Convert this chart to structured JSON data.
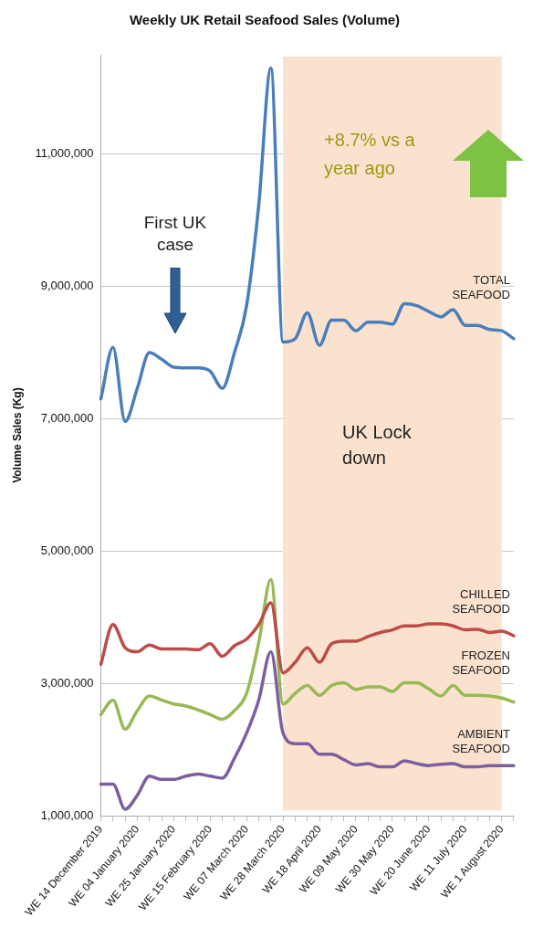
{
  "chart_data": {
    "type": "line",
    "title": "Weekly UK Retail Seafood Sales (Volume)",
    "ylabel": "Volume Sales (Kg)",
    "categories": [
      "WE 14 December 2019",
      null,
      null,
      "WE 04 January 2020",
      null,
      null,
      "WE 25 January 2020",
      null,
      null,
      "WE 15 February 2020",
      null,
      null,
      "WE 07 March 2020",
      null,
      null,
      "WE 28 March 2020",
      null,
      null,
      "WE 18 April 2020",
      null,
      null,
      "WE 09 May 2020",
      null,
      null,
      "WE 30 May 2020",
      null,
      null,
      "WE 20 June 2020",
      null,
      null,
      "WE 11 July 2020",
      null,
      null,
      "WE 1 August 2020",
      null
    ],
    "series": [
      {
        "name": "TOTAL SEAFOOD",
        "color": "#4a7ebb",
        "values": [
          7300000,
          8080000,
          6960000,
          7460000,
          8000000,
          7900000,
          7780000,
          7770000,
          7770000,
          7720000,
          7460000,
          8000000,
          8710000,
          10230000,
          12300000,
          8160000,
          8210000,
          8600000,
          8110000,
          8490000,
          8490000,
          8330000,
          8460000,
          8460000,
          8430000,
          8740000,
          8710000,
          8620000,
          8540000,
          8650000,
          8410000,
          8410000,
          8350000,
          8330000,
          8210000
        ]
      },
      {
        "name": "CHILLED SEAFOOD",
        "color": "#be4b48",
        "values": [
          3290000,
          3890000,
          3540000,
          3480000,
          3580000,
          3520000,
          3520000,
          3520000,
          3510000,
          3600000,
          3410000,
          3570000,
          3670000,
          3890000,
          4220000,
          3160000,
          3320000,
          3540000,
          3320000,
          3600000,
          3640000,
          3640000,
          3710000,
          3770000,
          3810000,
          3870000,
          3870000,
          3900000,
          3900000,
          3870000,
          3810000,
          3820000,
          3770000,
          3790000,
          3720000
        ]
      },
      {
        "name": "FROZEN SEAFOOD",
        "color": "#98b954",
        "values": [
          2530000,
          2750000,
          2310000,
          2590000,
          2810000,
          2750000,
          2690000,
          2660000,
          2600000,
          2530000,
          2460000,
          2590000,
          2850000,
          3620000,
          4570000,
          2690000,
          2850000,
          2970000,
          2820000,
          2970000,
          3010000,
          2910000,
          2950000,
          2950000,
          2880000,
          3010000,
          3010000,
          2920000,
          2810000,
          2970000,
          2820000,
          2820000,
          2810000,
          2780000,
          2720000
        ]
      },
      {
        "name": "AMBIENT SEAFOOD",
        "color": "#7d5fa0",
        "values": [
          1480000,
          1480000,
          1100000,
          1310000,
          1600000,
          1550000,
          1550000,
          1600000,
          1630000,
          1600000,
          1570000,
          1870000,
          2250000,
          2750000,
          3480000,
          2250000,
          2090000,
          2090000,
          1930000,
          1930000,
          1850000,
          1770000,
          1790000,
          1740000,
          1740000,
          1830000,
          1790000,
          1760000,
          1780000,
          1790000,
          1740000,
          1740000,
          1760000,
          1760000,
          1760000
        ]
      }
    ],
    "ylim": [
      1000000,
      12500000
    ],
    "yticks": [
      {
        "value": 1000000,
        "label": "1,000,000"
      },
      {
        "value": 3000000,
        "label": "3,000,000"
      },
      {
        "value": 5000000,
        "label": "5,000,000"
      },
      {
        "value": 7000000,
        "label": "7,000,000"
      },
      {
        "value": 9000000,
        "label": "9,000,000"
      },
      {
        "value": 11000000,
        "label": "11,000,000"
      }
    ],
    "bands": [
      {
        "axis": "x",
        "from": "WE 28 March 2020",
        "to": "WE 1 August 2020",
        "label": "UK Lock down",
        "color": "#fbe2cf"
      }
    ],
    "annotations": [
      "First UK case",
      "+8.7% vs a year ago"
    ],
    "grid": "y",
    "legend": false,
    "marker": "none",
    "line_style": "solid"
  }
}
